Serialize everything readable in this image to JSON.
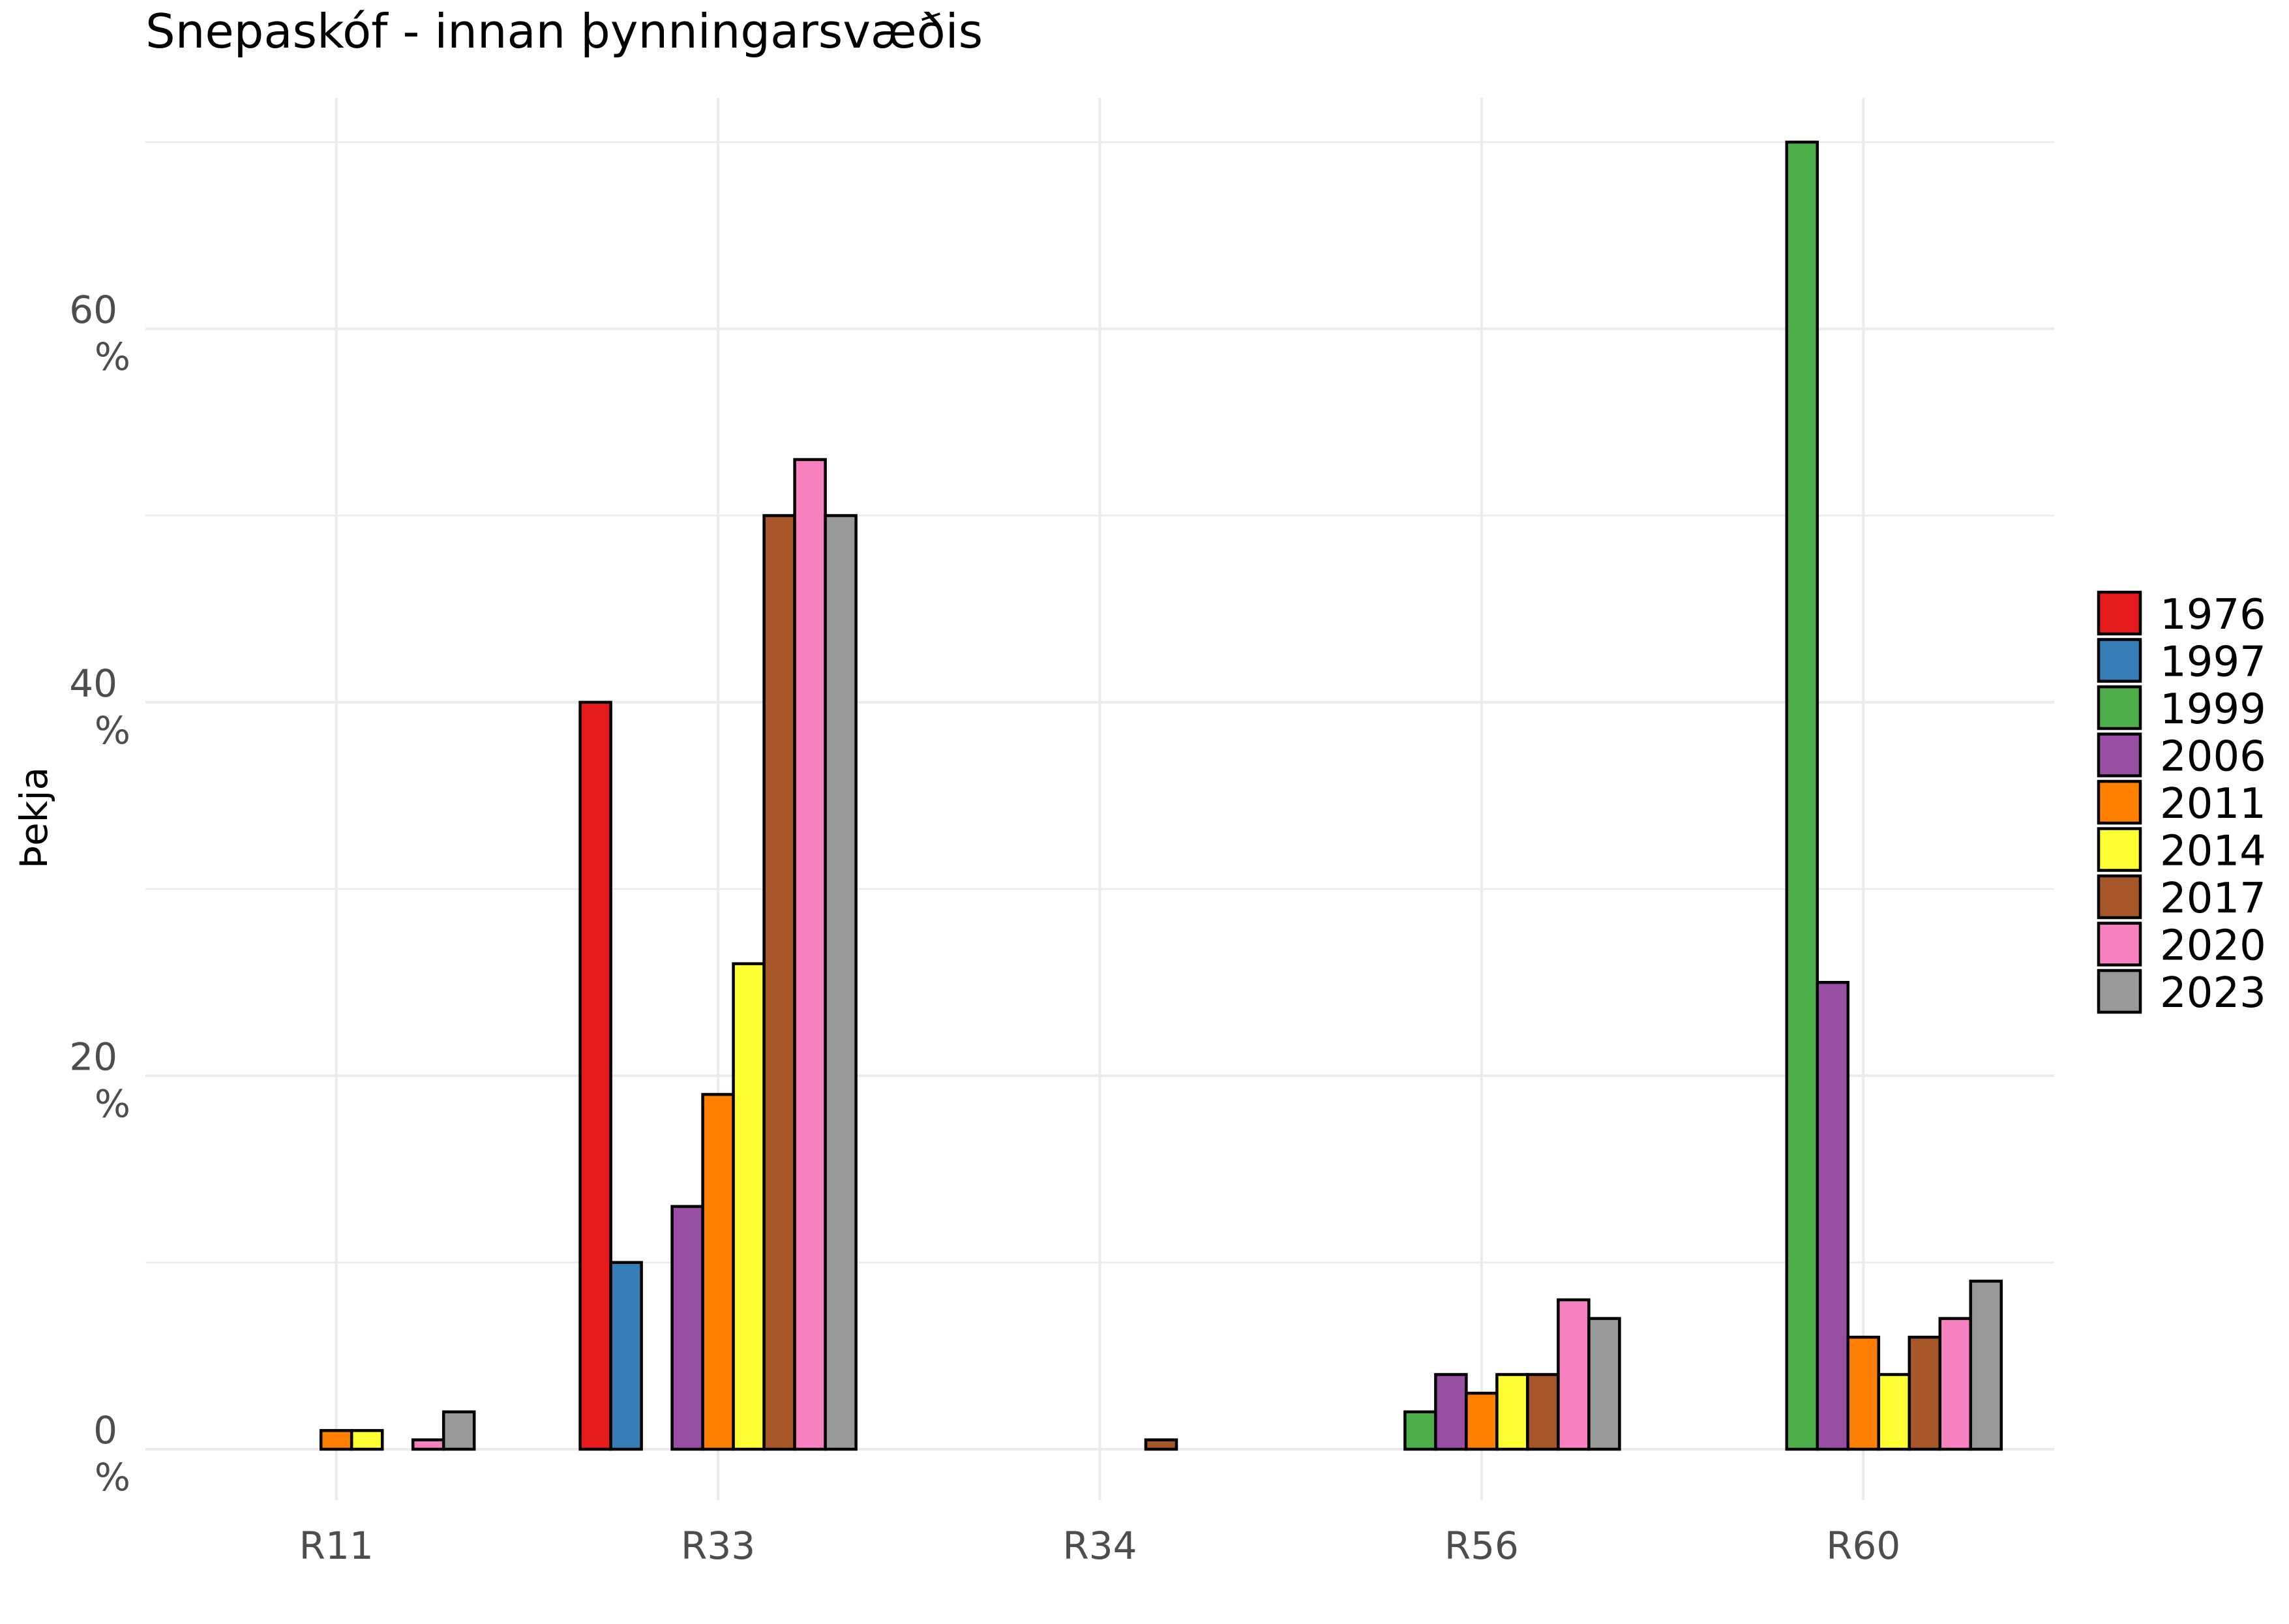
{
  "chart_data": {
    "type": "bar",
    "title": "Snepaskóf - innan þynningarsvæðis",
    "xlabel": "",
    "ylabel": "Þekja",
    "categories": [
      "R11",
      "R33",
      "R34",
      "R56",
      "R60"
    ],
    "ylim": [
      0,
      70
    ],
    "yticks": [
      {
        "value": 0,
        "label": "0 %"
      },
      {
        "value": 20,
        "label": "20 %"
      },
      {
        "value": 40,
        "label": "40 %"
      },
      {
        "value": 60,
        "label": "60 %"
      }
    ],
    "grid": true,
    "legend_position": "right",
    "series": [
      {
        "name": "1976",
        "color": "#E41A1C",
        "values": [
          0,
          40,
          0,
          0,
          0
        ]
      },
      {
        "name": "1997",
        "color": "#377EB8",
        "values": [
          0,
          10,
          0,
          0,
          0
        ]
      },
      {
        "name": "1999",
        "color": "#4DAF4A",
        "values": [
          0,
          0,
          0,
          2,
          70
        ]
      },
      {
        "name": "2006",
        "color": "#984EA3",
        "values": [
          0,
          13,
          0,
          4,
          25
        ]
      },
      {
        "name": "2011",
        "color": "#FF7F00",
        "values": [
          1,
          19,
          0,
          3,
          6
        ]
      },
      {
        "name": "2014",
        "color": "#FFFF33",
        "values": [
          1,
          26,
          0,
          4,
          4
        ]
      },
      {
        "name": "2017",
        "color": "#A65628",
        "values": [
          0,
          50,
          0.5,
          4,
          6
        ]
      },
      {
        "name": "2020",
        "color": "#F781BF",
        "values": [
          0.5,
          53,
          0,
          8,
          7
        ]
      },
      {
        "name": "2023",
        "color": "#999999",
        "values": [
          2,
          50,
          0,
          7,
          9
        ]
      }
    ]
  }
}
